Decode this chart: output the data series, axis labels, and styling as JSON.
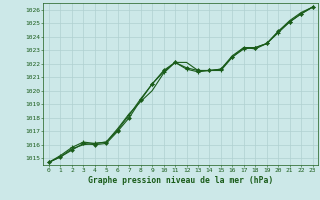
{
  "title": "Graphe pression niveau de la mer (hPa)",
  "bg_color": "#cce8e8",
  "grid_color": "#b0d0d0",
  "line_color": "#1a5c1a",
  "marker_color": "#1a5c1a",
  "ylim": [
    1014.5,
    1026.5
  ],
  "xlim": [
    -0.5,
    23.5
  ],
  "yticks": [
    1015,
    1016,
    1017,
    1018,
    1019,
    1020,
    1021,
    1022,
    1023,
    1024,
    1025,
    1026
  ],
  "xticks": [
    0,
    1,
    2,
    3,
    4,
    5,
    6,
    7,
    8,
    9,
    10,
    11,
    12,
    13,
    14,
    15,
    16,
    17,
    18,
    19,
    20,
    21,
    22,
    23
  ],
  "series1": [
    1014.7,
    1015.1,
    1015.6,
    1016.1,
    1016.0,
    1016.1,
    1017.0,
    1018.0,
    1019.3,
    1020.5,
    1021.5,
    1022.1,
    1021.7,
    1021.5,
    1021.5,
    1021.6,
    1022.5,
    1023.2,
    1023.2,
    1023.5,
    1024.4,
    1025.1,
    1025.7,
    1026.2
  ],
  "series2": [
    1014.7,
    1015.2,
    1015.8,
    1016.2,
    1016.1,
    1016.2,
    1017.1,
    1018.2,
    1019.4,
    1020.5,
    1021.4,
    1022.1,
    1021.6,
    1021.4,
    1021.5,
    1021.5,
    1022.5,
    1023.1,
    1023.2,
    1023.5,
    1024.3,
    1025.1,
    1025.7,
    1026.2
  ],
  "series3": [
    1014.7,
    1015.1,
    1015.7,
    1016.0,
    1016.1,
    1016.2,
    1017.2,
    1018.3,
    1019.2,
    1020.0,
    1021.3,
    1022.1,
    1022.1,
    1021.5,
    1021.5,
    1021.6,
    1022.6,
    1023.2,
    1023.1,
    1023.5,
    1024.4,
    1025.2,
    1025.8,
    1026.2
  ],
  "tick_fontsize": 4.5,
  "xlabel_fontsize": 5.8
}
